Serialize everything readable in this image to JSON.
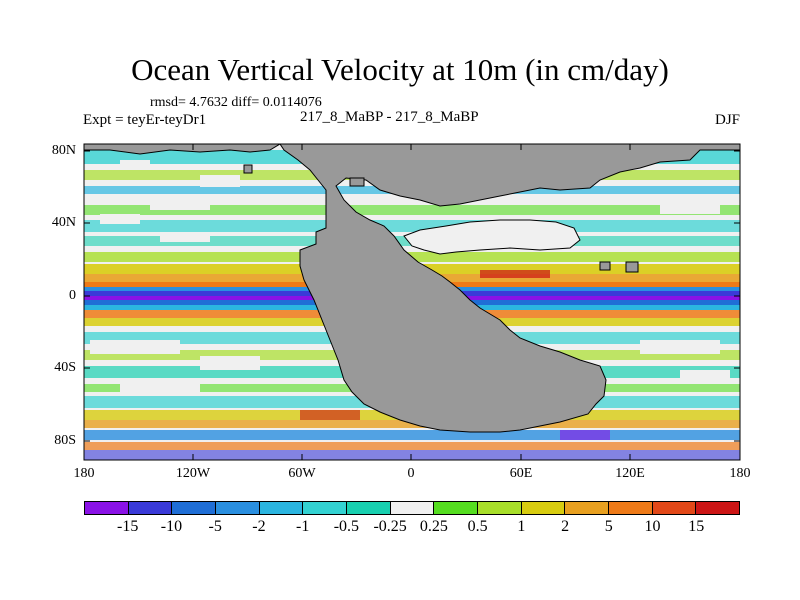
{
  "chart_data": {
    "type": "heatmap",
    "title": "Ocean Vertical Velocity at 10m (in cm/day)",
    "stats_text": "rmsd= 4.7632 diff= 0.0114076",
    "left_text": "Expt = teyEr-teyDr1",
    "center_text": "217_8_MaBP - 217_8_MaBP",
    "right_text": "DJF",
    "x_ticks": [
      "180",
      "120W",
      "60W",
      "0",
      "60E",
      "120E",
      "180"
    ],
    "y_ticks": [
      "80N",
      "40N",
      "0",
      "40S",
      "80S"
    ],
    "colorbar": {
      "levels": [
        "-15",
        "-10",
        "-5",
        "-2",
        "-1",
        "-0.5",
        "-0.25",
        "0.25",
        "0.5",
        "1",
        "2",
        "5",
        "10",
        "15"
      ],
      "colors": [
        "#8a12e6",
        "#3a3ad8",
        "#1f6ed6",
        "#2a8fe0",
        "#2bb5e0",
        "#33d2d2",
        "#18d0b0",
        "#f0f0f0",
        "#55dd20",
        "#a8de2a",
        "#d8cc10",
        "#e8a020",
        "#ee7a18",
        "#e24818",
        "#cc1515"
      ]
    },
    "land_color": "#999999"
  }
}
